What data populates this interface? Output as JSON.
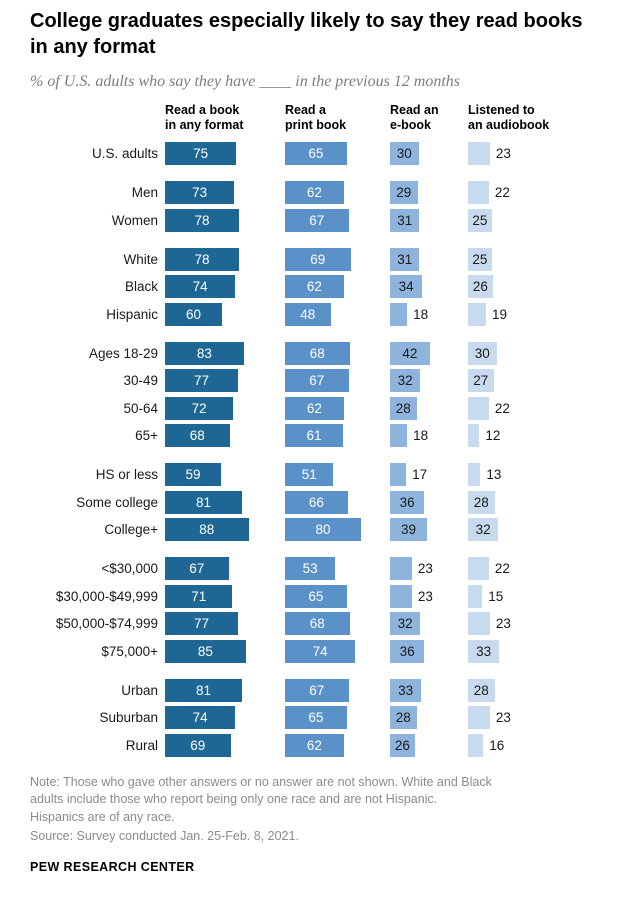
{
  "title": "College graduates especially likely to say they read books in any format",
  "subtitle": "% of U.S. adults who say they have ____ in the previous 12 months",
  "chart_data": {
    "type": "bar",
    "orientation": "horizontal",
    "unit": "%",
    "value_range": [
      0,
      100
    ],
    "legend_position": "column-headers-top",
    "grid": false,
    "series": [
      {
        "name": "Read a book in any format",
        "header_lines": [
          "Read a book",
          "in any format"
        ],
        "color": "#1e6794",
        "inside_label_color": "#ffffff"
      },
      {
        "name": "Read a print book",
        "header_lines": [
          "Read a",
          "print book"
        ],
        "color": "#5b91c9",
        "inside_label_color": "#ffffff"
      },
      {
        "name": "Read an e-book",
        "header_lines": [
          "Read an",
          "e-book"
        ],
        "color": "#8eb4dd",
        "inside_label_color": "#1a1a1a"
      },
      {
        "name": "Listened to an audiobook",
        "header_lines": [
          "Listened to",
          "an audiobook"
        ],
        "color": "#c8dbee",
        "inside_label_color": "#1a1a1a"
      }
    ],
    "groups": [
      {
        "rows": [
          {
            "label": "U.S. adults",
            "values": [
              75,
              65,
              30,
              23
            ]
          }
        ]
      },
      {
        "rows": [
          {
            "label": "Men",
            "values": [
              73,
              62,
              29,
              22
            ]
          },
          {
            "label": "Women",
            "values": [
              78,
              67,
              31,
              25
            ]
          }
        ]
      },
      {
        "rows": [
          {
            "label": "White",
            "values": [
              78,
              69,
              31,
              25
            ]
          },
          {
            "label": "Black",
            "values": [
              74,
              62,
              34,
              26
            ]
          },
          {
            "label": "Hispanic",
            "values": [
              60,
              48,
              18,
              19
            ]
          }
        ]
      },
      {
        "rows": [
          {
            "label": "Ages 18-29",
            "values": [
              83,
              68,
              42,
              30
            ]
          },
          {
            "label": "30-49",
            "values": [
              77,
              67,
              32,
              27
            ]
          },
          {
            "label": "50-64",
            "values": [
              72,
              62,
              28,
              22
            ]
          },
          {
            "label": "65+",
            "values": [
              68,
              61,
              18,
              12
            ]
          }
        ]
      },
      {
        "rows": [
          {
            "label": "HS or less",
            "values": [
              59,
              51,
              17,
              13
            ]
          },
          {
            "label": "Some college",
            "values": [
              81,
              66,
              36,
              28
            ]
          },
          {
            "label": "College+",
            "values": [
              88,
              80,
              39,
              32
            ]
          }
        ]
      },
      {
        "rows": [
          {
            "label": "<$30,000",
            "values": [
              67,
              53,
              23,
              22
            ]
          },
          {
            "label": "$30,000-$49,999",
            "values": [
              71,
              65,
              23,
              15
            ]
          },
          {
            "label": "$50,000-$74,999",
            "values": [
              77,
              68,
              32,
              23
            ]
          },
          {
            "label": "$75,000+",
            "values": [
              85,
              74,
              36,
              33
            ]
          }
        ]
      },
      {
        "rows": [
          {
            "label": "Urban",
            "values": [
              81,
              67,
              33,
              28
            ]
          },
          {
            "label": "Suburban",
            "values": [
              74,
              65,
              28,
              23
            ]
          },
          {
            "label": "Rural",
            "values": [
              69,
              62,
              26,
              16
            ]
          }
        ]
      }
    ]
  },
  "note_lines": [
    "Note: Those who gave other answers or no answer are not shown. White and Black",
    "adults include those who report being only one race and are not Hispanic.",
    "Hispanics are of any race."
  ],
  "source": "Source: Survey conducted Jan. 25-Feb. 8, 2021.",
  "footer": "PEW RESEARCH CENTER"
}
